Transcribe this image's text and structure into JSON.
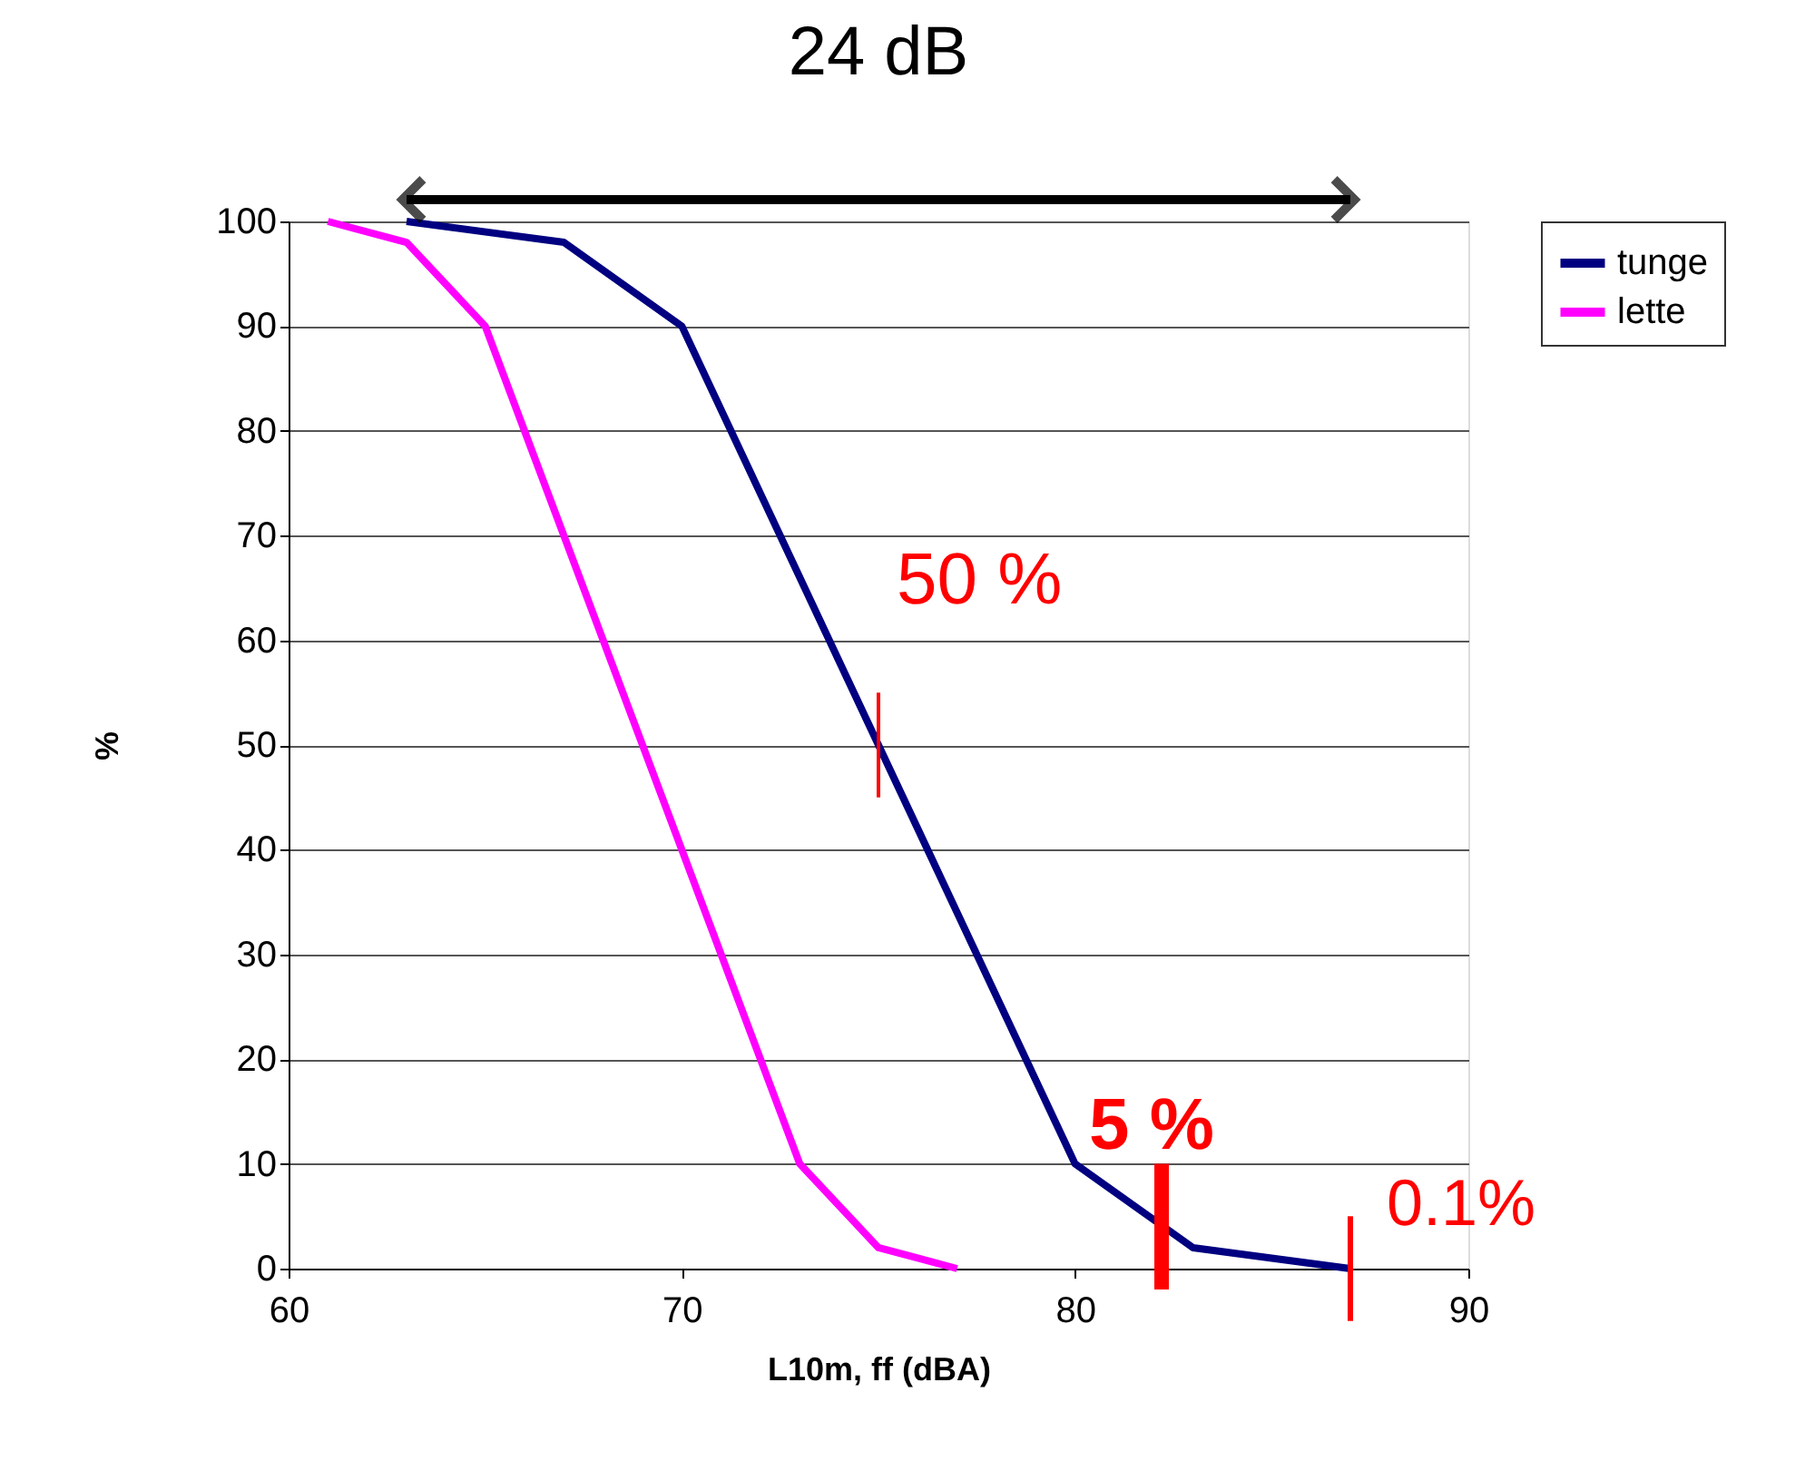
{
  "chart_data": {
    "type": "line",
    "title": "24 dB",
    "xlabel": "L10m, ff (dBA)",
    "ylabel": "%",
    "series": [
      {
        "name": "tunge",
        "color": "#000080",
        "x": [
          63,
          67,
          70,
          80,
          83,
          87
        ],
        "values": [
          100,
          98,
          90,
          10,
          2,
          0
        ]
      },
      {
        "name": "lette",
        "color": "#ff00ff",
        "x": [
          61,
          63,
          65,
          73,
          75,
          77
        ],
        "values": [
          100,
          98,
          90,
          10,
          2,
          0
        ]
      }
    ],
    "annotations": [
      {
        "text": "50 %",
        "x": 75,
        "y": 50
      },
      {
        "text": "5 %",
        "x": 82.2,
        "y": 4
      },
      {
        "text": "0.1%",
        "x": 87,
        "y": 0
      }
    ],
    "xlim": [
      60,
      90
    ],
    "xticks": [
      60,
      70,
      80,
      90
    ],
    "ylim": [
      0,
      100
    ],
    "yticks": [
      0,
      10,
      20,
      30,
      40,
      50,
      60,
      70,
      80,
      90,
      100
    ],
    "grid": "y",
    "legend": "right",
    "marker": "none",
    "line_style": "solid"
  }
}
